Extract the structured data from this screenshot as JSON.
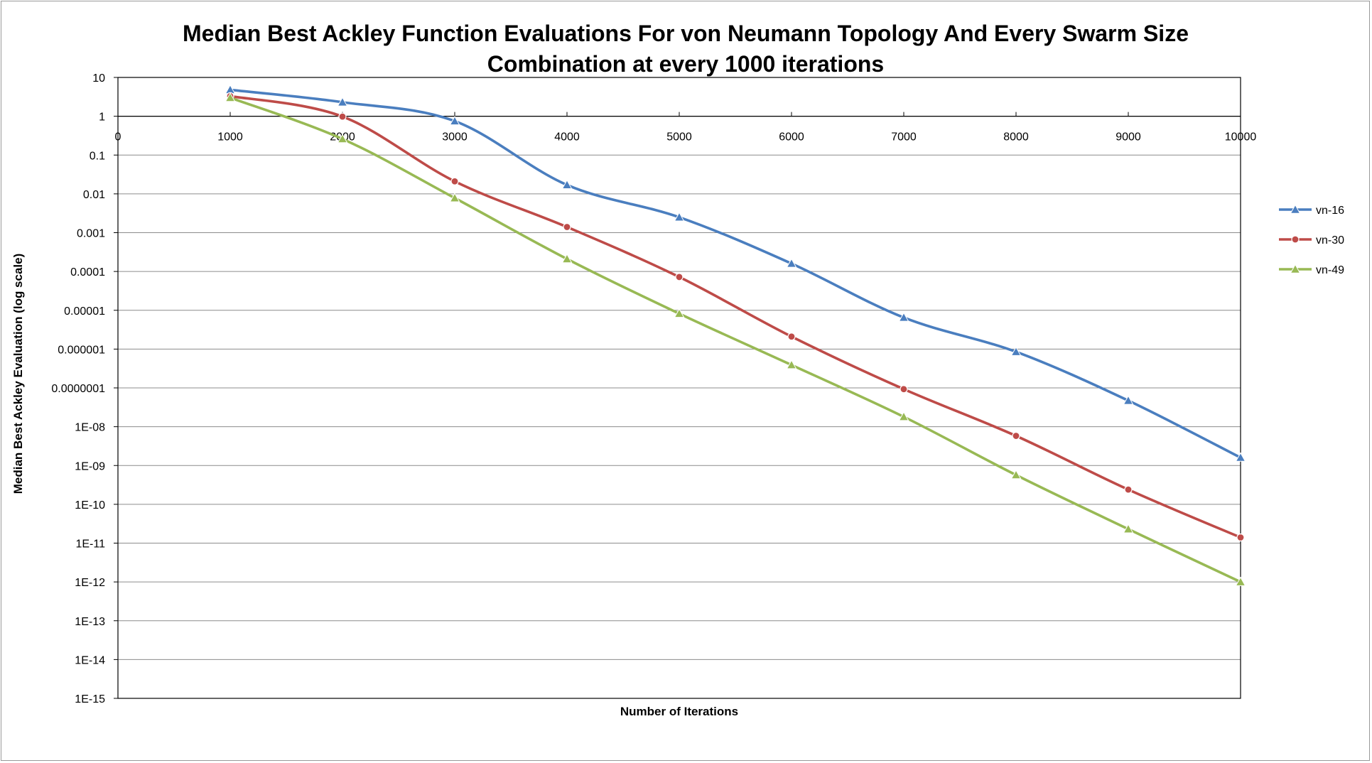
{
  "chart_data": {
    "type": "line",
    "title_line1": "Median Best Ackley Function Evaluations For von Neumann Topology And Every Swarm Size",
    "title_line2": "Combination at every 1000 iterations",
    "xlabel": "Number of Iterations",
    "ylabel": "Median Best Ackley Evaluation (log scale)",
    "y_scale": "log",
    "ylim": [
      1e-15,
      10
    ],
    "xlim": [
      0,
      10000
    ],
    "x_axis_crosses_y_at": 1,
    "grid": true,
    "legend_position": "right",
    "x_tick_labels": [
      "0",
      "1000",
      "2000",
      "3000",
      "4000",
      "5000",
      "6000",
      "7000",
      "8000",
      "9000",
      "10000"
    ],
    "x_tick_values": [
      0,
      1000,
      2000,
      3000,
      4000,
      5000,
      6000,
      7000,
      8000,
      9000,
      10000
    ],
    "y_tick_labels": [
      "10",
      "1",
      "0.1",
      "0.01",
      "0.001",
      "0.0001",
      "0.00001",
      "0.000001",
      "0.0000001",
      "1E-08",
      "1E-09",
      "1E-10",
      "1E-11",
      "1E-12",
      "1E-13",
      "1E-14",
      "1E-15"
    ],
    "y_tick_values": [
      10,
      1,
      0.1,
      0.01,
      0.001,
      0.0001,
      1e-05,
      1e-06,
      1e-07,
      1e-08,
      1e-09,
      1e-10,
      1e-11,
      1e-12,
      1e-13,
      1e-14,
      1e-15
    ],
    "x": [
      1000,
      2000,
      3000,
      4000,
      5000,
      6000,
      7000,
      8000,
      9000,
      10000
    ],
    "series": [
      {
        "name": "vn-16",
        "color": "#4a7ebf",
        "marker": "triangle",
        "values": [
          4.8,
          2.3,
          0.75,
          0.017,
          0.0025,
          0.00016,
          6.5e-06,
          8.5e-07,
          4.7e-08,
          1.6e-09
        ]
      },
      {
        "name": "vn-30",
        "color": "#be4b48",
        "marker": "circle",
        "values": [
          3.3,
          0.98,
          0.021,
          0.0014,
          7.2e-05,
          2.1e-06,
          9.3e-08,
          5.8e-09,
          2.4e-10,
          1.4e-11
        ]
      },
      {
        "name": "vn-49",
        "color": "#98b954",
        "marker": "triangle",
        "values": [
          3.0,
          0.26,
          0.0078,
          0.00021,
          8.2e-06,
          3.9e-07,
          1.8e-08,
          5.7e-10,
          2.3e-11,
          1e-12
        ]
      }
    ]
  }
}
